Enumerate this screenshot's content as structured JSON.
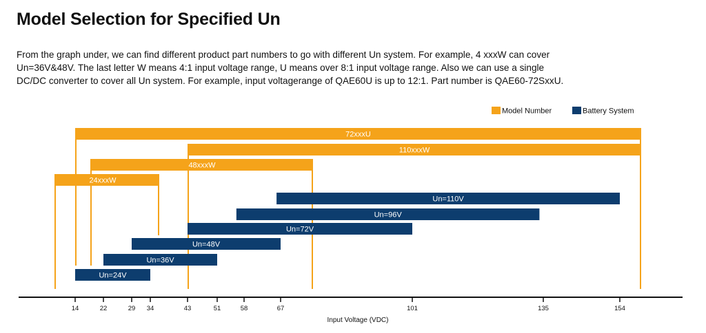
{
  "page": {
    "title": "Model Selection for Specified Un",
    "description_lines": [
      "From the graph under, we can find different product part numbers to go with different Un system. For example, 4  xxxW can cover",
      "Un=36V&48V. The last letter W means 4:1 input voltage range, U means over 8:1 input voltage range. Also we can use a single",
      "DC/DC converter to cover all Un system. For example, input voltagerange of QAE60U is up to 12:1. Part number is QAE60-72SxxU."
    ]
  },
  "colors": {
    "model": "#F5A31A",
    "battery": "#0D3D6E",
    "axis": "#111111"
  },
  "chart_data": {
    "type": "bar",
    "orientation": "horizontal-range",
    "xlabel": "Input Voltage (VDC)",
    "xticks": [
      14,
      22,
      29,
      34,
      43,
      51,
      58,
      67,
      101,
      135,
      154
    ],
    "legend": {
      "placement": "top-right",
      "entries": [
        {
          "name": "Model Number",
          "color": "#F5A31A"
        },
        {
          "name": "Battery System",
          "color": "#0D3D6E"
        }
      ]
    },
    "series": [
      {
        "name": "Model Number",
        "ranges": [
          {
            "label": "72xxxU",
            "start": 14,
            "end": 170
          },
          {
            "label": "110xxxW",
            "start": 43,
            "end": 170
          },
          {
            "label": "48xxxW",
            "start": 18,
            "end": 76
          },
          {
            "label": "24xxxW",
            "start": 9,
            "end": 36
          }
        ]
      },
      {
        "name": "Battery System",
        "ranges": [
          {
            "label": "Un=110V",
            "start": 66,
            "end": 154
          },
          {
            "label": "Un=96V",
            "start": 56,
            "end": 134
          },
          {
            "label": "Un=72V",
            "start": 43,
            "end": 101
          },
          {
            "label": "Un=48V",
            "start": 29,
            "end": 67
          },
          {
            "label": "Un=36V",
            "start": 22,
            "end": 51
          },
          {
            "label": "Un=24V",
            "start": 14,
            "end": 34
          }
        ]
      }
    ]
  }
}
